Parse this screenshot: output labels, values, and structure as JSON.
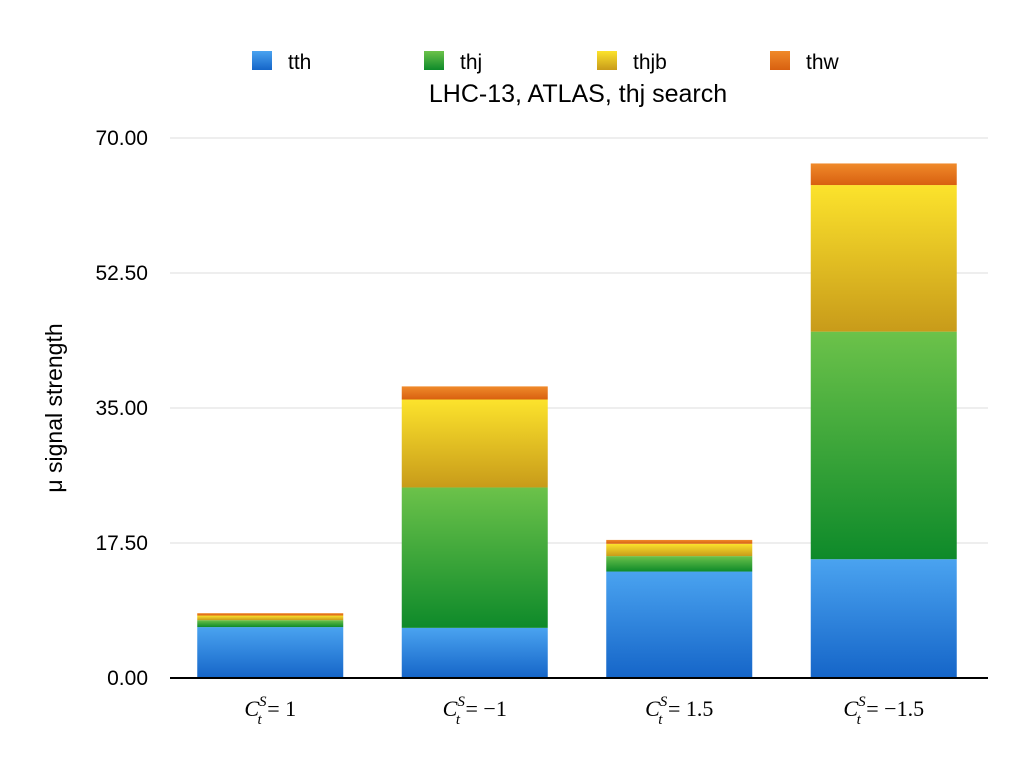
{
  "chart_data": {
    "type": "bar",
    "stacked": true,
    "title": "LHC-13, ATLAS, thj search",
    "xlabel": "",
    "ylabel": "μ signal strength",
    "ylim": [
      0,
      70
    ],
    "yticks": [
      0,
      17.5,
      35,
      52.5,
      70
    ],
    "ytick_labels": [
      "0.00",
      "17.50",
      "35.00",
      "52.50",
      "70.00"
    ],
    "grid": true,
    "legend_position": "top",
    "categories": [
      {
        "base": "C",
        "sub": "t",
        "sup": "S",
        "rel": " = 1"
      },
      {
        "base": "C",
        "sub": "t",
        "sup": "S",
        "rel": " = −1"
      },
      {
        "base": "C",
        "sub": "t",
        "sup": "S",
        "rel": " = 1.5"
      },
      {
        "base": "C",
        "sub": "t",
        "sup": "S",
        "rel": " = −1.5"
      }
    ],
    "series": [
      {
        "name": "tth",
        "color_top": "#4aa3f0",
        "color_bottom": "#1565c8",
        "values": [
          6.6,
          6.5,
          13.8,
          15.4
        ]
      },
      {
        "name": "thj",
        "color_top": "#6cc24a",
        "color_bottom": "#0e8a2a",
        "values": [
          0.9,
          18.2,
          2.0,
          29.5
        ]
      },
      {
        "name": "thjb",
        "color_top": "#fce32c",
        "color_bottom": "#c89b1a",
        "values": [
          0.6,
          11.4,
          1.6,
          19.0
        ]
      },
      {
        "name": "thw",
        "color_top": "#f08a2a",
        "color_bottom": "#d86010",
        "values": [
          0.3,
          1.7,
          0.5,
          2.8
        ]
      }
    ]
  }
}
